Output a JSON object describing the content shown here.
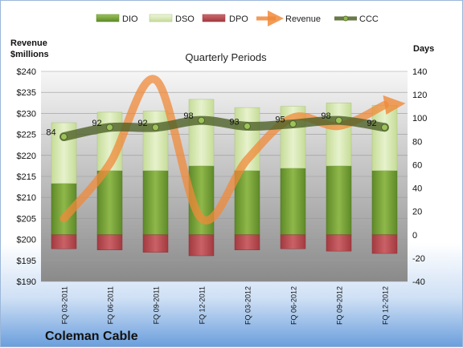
{
  "chart_data": {
    "type": "bar",
    "title": "Quarterly Periods",
    "company": "Coleman Cable",
    "left_axis_label": [
      "Revenue",
      "$millions"
    ],
    "right_axis_label": "Days",
    "left_axis": {
      "min": 190,
      "max": 240,
      "step": 5,
      "prefix": "$"
    },
    "right_axis": {
      "min": -40,
      "max": 140,
      "step": 20
    },
    "categories": [
      "FQ 03-2011",
      "FQ 06-2011",
      "FQ 09-2011",
      "FQ 12-2011",
      "FQ 03-2012",
      "FQ 06-2012",
      "FQ 09-2012",
      "FQ 12-2012"
    ],
    "legend": [
      "DIO",
      "DSO",
      "DPO",
      "Revenue",
      "CCC"
    ],
    "legend_position": "top",
    "series": [
      {
        "name": "DIO",
        "type": "stacked-bar",
        "axis": "right",
        "values": [
          44,
          55,
          55,
          59,
          55,
          57,
          59,
          55
        ]
      },
      {
        "name": "DSO",
        "type": "stacked-bar",
        "axis": "right",
        "values": [
          52,
          50,
          51,
          57,
          54,
          53,
          54,
          56
        ]
      },
      {
        "name": "DPO",
        "type": "negative-bar",
        "axis": "right",
        "values": [
          -12,
          -13,
          -15,
          -18,
          -13,
          -12,
          -14,
          -16
        ]
      },
      {
        "name": "Revenue",
        "type": "line",
        "axis": "left",
        "values": [
          205,
          218,
          238,
          205,
          219,
          229,
          227,
          232
        ]
      },
      {
        "name": "CCC",
        "type": "line",
        "axis": "right",
        "values": [
          84,
          92,
          92,
          98,
          93,
          95,
          98,
          92
        ]
      }
    ],
    "ccc_labels": [
      "84",
      "92",
      "92",
      "98",
      "93",
      "95",
      "98",
      "92"
    ],
    "colors": {
      "DIO": "#7ba03a",
      "DSO": "#d6e8b0",
      "DPO": "#b8474d",
      "Revenue": "#f08a3a",
      "CCC": "#4f6228",
      "plot_gradient_top": "#f4f4f4",
      "plot_gradient_bottom": "#8c8c8c"
    }
  }
}
